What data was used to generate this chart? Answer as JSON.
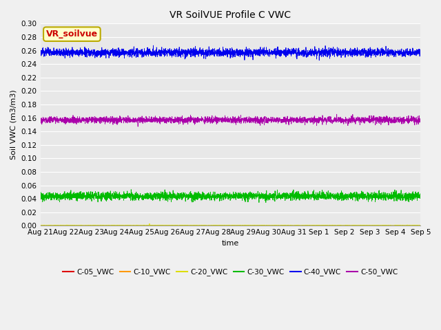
{
  "title": "VR SoilVUE Profile C VWC",
  "xlabel": "time",
  "ylabel": "Soil VWC (m3/m3)",
  "ylim": [
    0.0,
    0.3
  ],
  "yticks": [
    0.0,
    0.02,
    0.04,
    0.06,
    0.08,
    0.1,
    0.12,
    0.14,
    0.16,
    0.18,
    0.2,
    0.22,
    0.24,
    0.26,
    0.28,
    0.3
  ],
  "xtick_labels": [
    "Aug 21",
    "Aug 22",
    "Aug 23",
    "Aug 24",
    "Aug 25",
    "Aug 26",
    "Aug 27",
    "Aug 28",
    "Aug 29",
    "Aug 30",
    "Aug 31",
    "Sep 1",
    "Sep 2",
    "Sep 3",
    "Sep 4",
    "Sep 5"
  ],
  "n_points": 3000,
  "series": [
    {
      "label": "C-05_VWC",
      "color": "#dd0000",
      "mean": 0.0,
      "noise": 0.0,
      "linewidth": 0.6
    },
    {
      "label": "C-10_VWC",
      "color": "#ff9900",
      "mean": 0.0,
      "noise": 0.0,
      "linewidth": 0.6
    },
    {
      "label": "C-20_VWC",
      "color": "#dddd00",
      "mean": 0.0005,
      "noise": 0.0002,
      "linewidth": 0.6
    },
    {
      "label": "C-30_VWC",
      "color": "#00bb00",
      "mean": 0.044,
      "noise": 0.003,
      "linewidth": 0.6
    },
    {
      "label": "C-40_VWC",
      "color": "#0000ee",
      "mean": 0.257,
      "noise": 0.003,
      "linewidth": 0.6
    },
    {
      "label": "C-50_VWC",
      "color": "#aa00aa",
      "mean": 0.157,
      "noise": 0.0025,
      "linewidth": 0.6
    }
  ],
  "annotation_text": "VR_soilvue",
  "annotation_color": "#cc0000",
  "annotation_bg": "#ffffcc",
  "annotation_border": "#bbaa00",
  "fig_facecolor": "#f0f0f0",
  "plot_facecolor": "#e8e8e8",
  "figsize": [
    6.4,
    4.8
  ],
  "dpi": 100,
  "title_fontsize": 10,
  "axis_fontsize": 8,
  "tick_fontsize": 7.5,
  "legend_fontsize": 7.5,
  "grid_color": "#ffffff",
  "grid_linewidth": 0.8
}
